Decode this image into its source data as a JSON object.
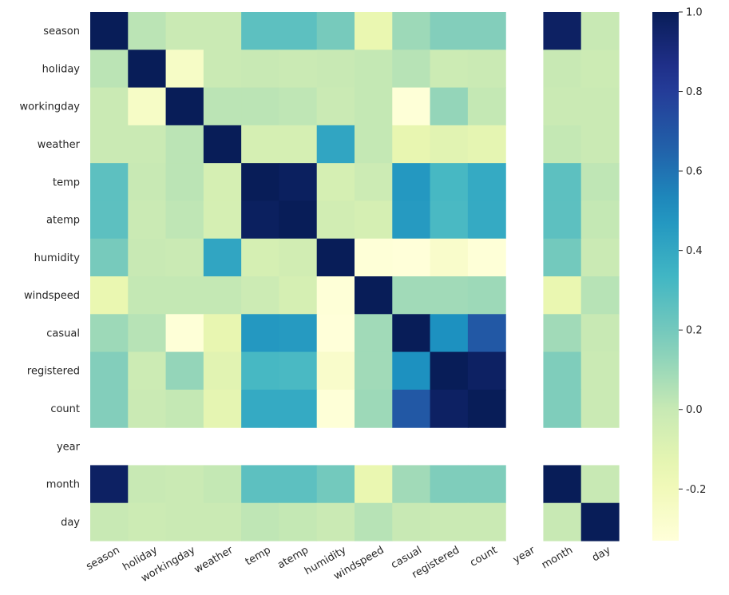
{
  "chart_data": {
    "type": "heatmap",
    "title": "",
    "xlabel": "",
    "ylabel": "",
    "labels": [
      "season",
      "holiday",
      "workingday",
      "weather",
      "temp",
      "atemp",
      "humidity",
      "windspeed",
      "casual",
      "registered",
      "count",
      "year",
      "month",
      "day"
    ],
    "values": [
      [
        1.0,
        0.03,
        -0.01,
        -0.01,
        0.26,
        0.26,
        0.19,
        -0.15,
        0.1,
        0.16,
        0.16,
        null,
        0.97,
        0.0
      ],
      [
        0.03,
        1.0,
        -0.25,
        -0.01,
        0.0,
        -0.01,
        0.0,
        0.01,
        0.04,
        -0.02,
        -0.01,
        null,
        0.0,
        -0.02
      ],
      [
        -0.01,
        -0.25,
        1.0,
        0.03,
        0.03,
        0.02,
        -0.01,
        0.01,
        -0.32,
        0.12,
        0.01,
        null,
        -0.01,
        -0.01
      ],
      [
        -0.01,
        -0.01,
        0.03,
        1.0,
        -0.06,
        -0.06,
        0.41,
        0.01,
        -0.14,
        -0.11,
        -0.13,
        null,
        0.01,
        -0.01
      ],
      [
        0.26,
        0.0,
        0.03,
        -0.06,
        1.0,
        0.98,
        -0.06,
        -0.02,
        0.47,
        0.32,
        0.39,
        null,
        0.26,
        0.02
      ],
      [
        0.26,
        -0.01,
        0.02,
        -0.06,
        0.98,
        1.0,
        -0.04,
        -0.06,
        0.46,
        0.31,
        0.39,
        null,
        0.26,
        0.01
      ],
      [
        0.19,
        0.0,
        -0.01,
        0.41,
        -0.06,
        -0.04,
        1.0,
        -0.32,
        -0.35,
        -0.27,
        -0.32,
        null,
        0.2,
        -0.01
      ],
      [
        -0.15,
        0.01,
        0.01,
        0.01,
        -0.02,
        -0.06,
        -0.32,
        1.0,
        0.09,
        0.09,
        0.1,
        null,
        -0.15,
        0.04
      ],
      [
        0.1,
        0.04,
        -0.32,
        -0.14,
        0.47,
        0.46,
        -0.35,
        0.09,
        1.0,
        0.5,
        0.69,
        null,
        0.09,
        0.0
      ],
      [
        0.16,
        -0.02,
        0.12,
        -0.11,
        0.32,
        0.31,
        -0.27,
        0.09,
        0.5,
        1.0,
        0.97,
        null,
        0.17,
        -0.01
      ],
      [
        0.16,
        -0.01,
        0.01,
        -0.13,
        0.39,
        0.39,
        -0.32,
        0.1,
        0.69,
        0.97,
        1.0,
        null,
        0.17,
        -0.01
      ],
      [
        null,
        null,
        null,
        null,
        null,
        null,
        null,
        null,
        null,
        null,
        null,
        null,
        null,
        null
      ],
      [
        0.97,
        0.0,
        -0.01,
        0.01,
        0.26,
        0.26,
        0.2,
        -0.15,
        0.09,
        0.17,
        0.17,
        null,
        1.0,
        0.0
      ],
      [
        0.0,
        -0.02,
        -0.01,
        -0.01,
        0.02,
        0.01,
        -0.01,
        0.04,
        0.0,
        -0.01,
        -0.01,
        null,
        0.0,
        1.0
      ]
    ],
    "vmin": -0.33,
    "vmax": 1.0,
    "colormap": "YlGnBu",
    "colorbar": {
      "ticks": [
        1.0,
        0.8,
        0.6,
        0.4,
        0.2,
        0.0,
        -0.2
      ],
      "tick_labels": [
        "1.0",
        "0.8",
        "0.6",
        "0.4",
        "0.2",
        "0.0",
        "-0.2"
      ]
    },
    "x_tick_rotation": "30 degrees"
  }
}
